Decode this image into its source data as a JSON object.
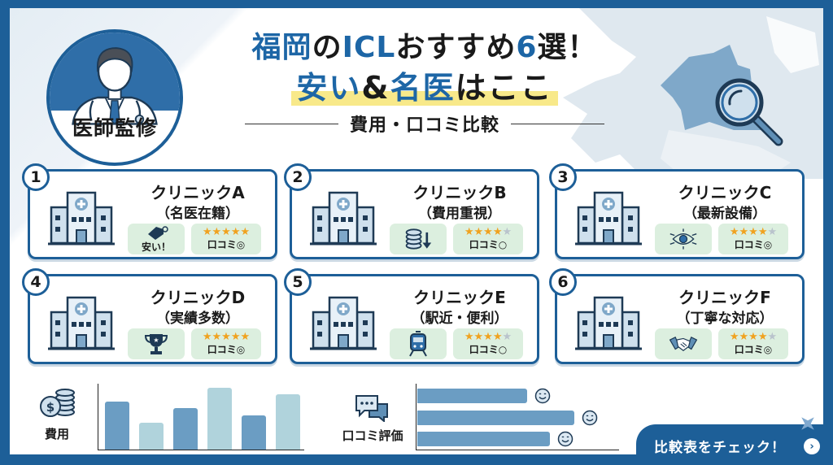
{
  "badge": {
    "label": "医師監修"
  },
  "title": {
    "line1_blue_a": "福岡",
    "line1_dark_a": "の",
    "line1_blue_b": "ICL",
    "line1_dark_b": "おすすめ",
    "line1_blue_c": "6",
    "line1_dark_c": "選！",
    "line2_blue_a": "安い",
    "line2_dark_a": "&",
    "line2_blue_b": "名医",
    "line2_dark_b": "はここ",
    "subtitle": "費用・口コミ比較"
  },
  "colors": {
    "frame": "#1d5f98",
    "accent_blue": "#1d66a6",
    "highlight_yellow": "#f8e98a",
    "chip_green": "#dcefdf",
    "star_gold": "#f0a21f",
    "bar_dark": "#6b9dc3",
    "bar_light": "#b0d3dc"
  },
  "clinics": [
    {
      "number": "1",
      "name": "クリニックA",
      "subtitle": "（名医在籍）",
      "feature_icon": "price-tag-icon",
      "feature_text": "安い！",
      "stars": 5,
      "stars_display": "★★★★★",
      "stars_off": "",
      "rating_text": "口コミ◎"
    },
    {
      "number": "2",
      "name": "クリニックB",
      "subtitle": "（費用重視）",
      "feature_icon": "coins-down-icon",
      "feature_text": "",
      "stars": 4,
      "stars_display": "★★★★",
      "stars_off": "★",
      "rating_text": "口コミ○"
    },
    {
      "number": "3",
      "name": "クリニックC",
      "subtitle": "（最新設備）",
      "feature_icon": "tech-eye-icon",
      "feature_text": "",
      "stars": 4.5,
      "stars_display": "★★★★",
      "stars_off": "★",
      "rating_text": "口コミ◎"
    },
    {
      "number": "4",
      "name": "クリニックD",
      "subtitle": "（実績多数）",
      "feature_icon": "trophy-icon",
      "feature_text": "",
      "stars": 5,
      "stars_display": "★★★★★",
      "stars_off": "",
      "rating_text": "口コミ◎"
    },
    {
      "number": "5",
      "name": "クリニックE",
      "subtitle": "（駅近・便利）",
      "feature_icon": "train-icon",
      "feature_text": "",
      "stars": 4,
      "stars_display": "★★★★",
      "stars_off": "★",
      "rating_text": "口コミ○"
    },
    {
      "number": "6",
      "name": "クリニックF",
      "subtitle": "（丁寧な対応）",
      "feature_icon": "handshake-icon",
      "feature_text": "",
      "stars": 4.5,
      "stars_display": "★★★★",
      "stars_off": "★",
      "rating_text": "口コミ◎"
    }
  ],
  "cost_chart": {
    "label": "費用",
    "icon": "coins-dollar-icon",
    "type": "bar",
    "values": [
      59,
      33,
      51,
      76,
      42,
      68
    ],
    "shades": [
      "dark",
      "light",
      "dark",
      "light",
      "dark",
      "light"
    ]
  },
  "review_chart": {
    "label": "口コミ評価",
    "icon": "chat-bubbles-icon",
    "type": "bar-horizontal",
    "values": [
      135,
      193,
      163
    ]
  },
  "cta": {
    "label": "比較表をチェック！",
    "arrow": "›"
  }
}
